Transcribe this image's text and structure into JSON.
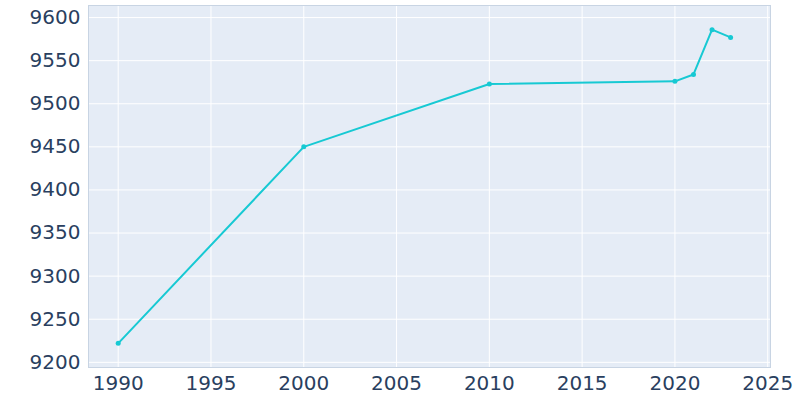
{
  "chart_data": {
    "type": "line",
    "x": [
      1990,
      2000,
      2010,
      2020,
      2021,
      2022,
      2023
    ],
    "values": [
      9222,
      9450,
      9523,
      9526,
      9534,
      9586,
      9577
    ],
    "color": "#17c9d3",
    "marker": "circle",
    "xlim": [
      1988.4,
      2025.15
    ],
    "xticks": [
      1990,
      1995,
      2000,
      2005,
      2010,
      2015,
      2020,
      2025
    ],
    "ylim": [
      9194,
      9614
    ],
    "yticks": [
      9200,
      9250,
      9300,
      9350,
      9400,
      9450,
      9500,
      9550,
      9600
    ],
    "grid": true
  }
}
